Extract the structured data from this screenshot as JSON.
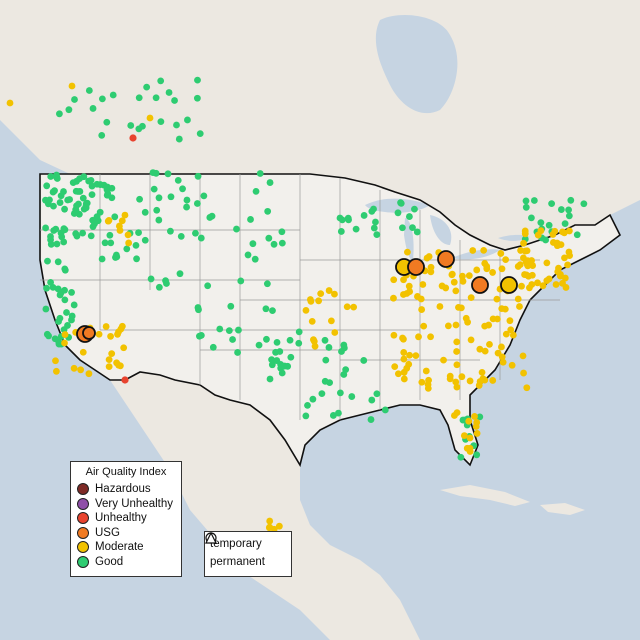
{
  "legend": {
    "title": "Air Quality Index",
    "categories": [
      {
        "label": "Hazardous",
        "color": "#7e2a26"
      },
      {
        "label": "Very Unhealthy",
        "color": "#8f4fa8"
      },
      {
        "label": "Unhealthy",
        "color": "#e8432e"
      },
      {
        "label": "USG",
        "color": "#f07a22"
      },
      {
        "label": "Moderate",
        "color": "#f2c200"
      },
      {
        "label": "Good",
        "color": "#2ecc71"
      }
    ],
    "monitor_types": [
      {
        "label": "temporary",
        "symbol": "circle-icon"
      },
      {
        "label": "permanent",
        "symbol": "triangle-icon"
      }
    ]
  },
  "map": {
    "land_color": "#ece8e1",
    "water_color": "#c6d4e2",
    "us_land_color": "#f2f0ec"
  }
}
